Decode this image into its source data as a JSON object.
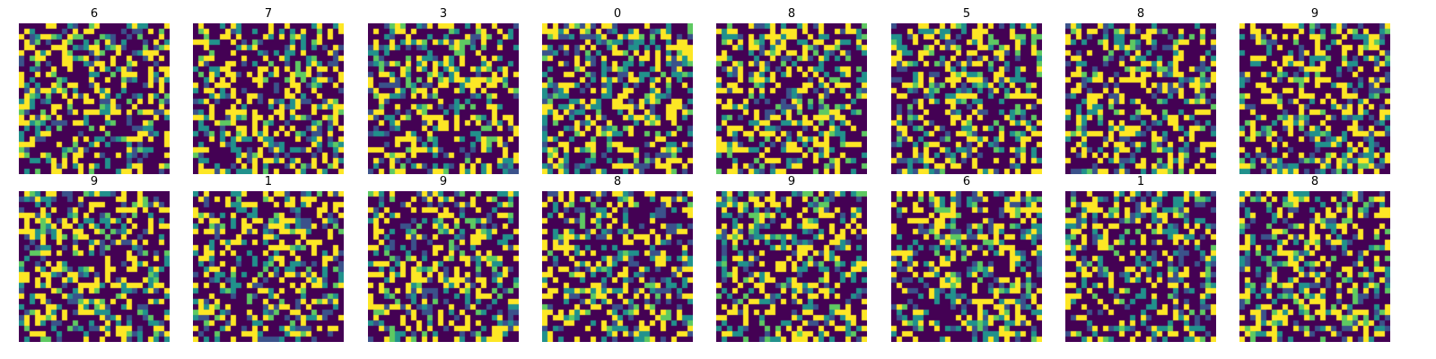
{
  "chart_data": {
    "type": "heatmap",
    "grid": "28x28",
    "colormap": "viridis",
    "value_levels": [
      0,
      1,
      2,
      3,
      4
    ],
    "level_colors": [
      "#440154",
      "#3b528b",
      "#21918c",
      "#5ec962",
      "#fde725"
    ],
    "level_probabilities": [
      0.5,
      0.09,
      0.12,
      0.06,
      0.23
    ],
    "axes_visible": false,
    "panels": [
      {
        "title": "6",
        "seed": 11
      },
      {
        "title": "7",
        "seed": 23
      },
      {
        "title": "3",
        "seed": 37
      },
      {
        "title": "0",
        "seed": 41
      },
      {
        "title": "8",
        "seed": 53
      },
      {
        "title": "5",
        "seed": 67
      },
      {
        "title": "8",
        "seed": 71
      },
      {
        "title": "9",
        "seed": 89
      },
      {
        "title": "9",
        "seed": 97
      },
      {
        "title": "1",
        "seed": 101
      },
      {
        "title": "9",
        "seed": 113
      },
      {
        "title": "8",
        "seed": 127
      },
      {
        "title": "9",
        "seed": 131
      },
      {
        "title": "6",
        "seed": 149
      },
      {
        "title": "1",
        "seed": 157
      },
      {
        "title": "8",
        "seed": 163
      }
    ]
  }
}
